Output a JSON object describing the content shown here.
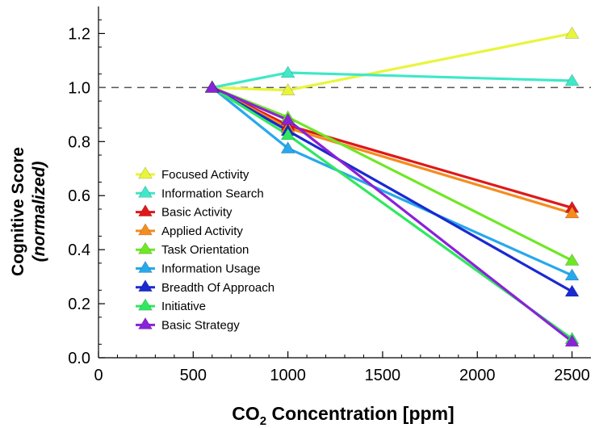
{
  "chart_data": {
    "type": "line",
    "xlabel_main": "CO",
    "xlabel_sub": "2",
    "xlabel_rest": " Concentration [ppm]",
    "ylabel_line1": "Cognitive Score",
    "ylabel_line2": "(normalized)",
    "xlim": [
      0,
      2600
    ],
    "ylim": [
      0,
      1.3
    ],
    "x_ticks": [
      0,
      500,
      1000,
      1500,
      2000,
      2500
    ],
    "x_tick_labels": [
      "0",
      "500",
      "1000",
      "1500",
      "2000",
      "2500"
    ],
    "y_ticks": [
      0.0,
      0.2,
      0.4,
      0.6,
      0.8,
      1.0,
      1.2
    ],
    "y_tick_labels": [
      "0.0",
      "0.2",
      "0.4",
      "0.6",
      "0.8",
      "1.0",
      "1.2"
    ],
    "reference_line": 1.0,
    "legend_position": "center-left",
    "x": [
      600,
      1000,
      2500
    ],
    "series": [
      {
        "name": "Focused Activity",
        "color": "#e8f53a",
        "values": [
          1.0,
          0.99,
          1.2
        ]
      },
      {
        "name": "Information Search",
        "color": "#3ee8c8",
        "values": [
          1.0,
          1.055,
          1.025
        ]
      },
      {
        "name": "Basic Activity",
        "color": "#e01818",
        "values": [
          1.0,
          0.86,
          0.555
        ]
      },
      {
        "name": "Applied Activity",
        "color": "#f58c1e",
        "values": [
          1.0,
          0.85,
          0.535
        ]
      },
      {
        "name": "Task Orientation",
        "color": "#6ee824",
        "values": [
          1.0,
          0.89,
          0.36
        ]
      },
      {
        "name": "Information Usage",
        "color": "#28a8ec",
        "values": [
          1.0,
          0.775,
          0.305
        ]
      },
      {
        "name": "Breadth Of Approach",
        "color": "#1a2ad0",
        "values": [
          1.0,
          0.84,
          0.245
        ]
      },
      {
        "name": "Initiative",
        "color": "#30e860",
        "values": [
          1.0,
          0.825,
          0.07
        ]
      },
      {
        "name": "Basic Strategy",
        "color": "#8a22d8",
        "values": [
          1.0,
          0.88,
          0.06
        ]
      }
    ]
  }
}
